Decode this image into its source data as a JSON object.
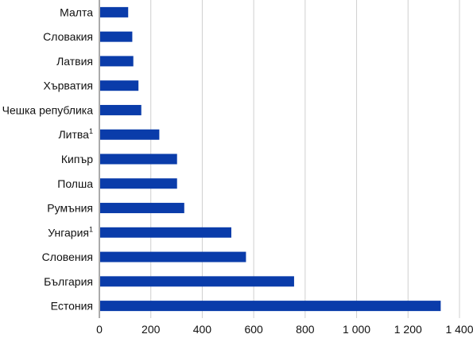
{
  "chart_data": {
    "type": "bar",
    "orientation": "horizontal",
    "categories": [
      "Малта",
      "Словакия",
      "Латвия",
      "Хърватия",
      "Чешка република",
      "Литва",
      "Кипър",
      "Полша",
      "Румъния",
      "Унгария",
      "Словения",
      "България",
      "Естония"
    ],
    "footnote_marks": [
      "",
      "",
      "",
      "",
      "",
      "1",
      "",
      "",
      "",
      "1",
      "",
      "",
      ""
    ],
    "values": [
      112,
      128,
      132,
      152,
      163,
      233,
      302,
      302,
      330,
      513,
      570,
      757,
      1327
    ],
    "xlim": [
      0,
      1400
    ],
    "xticks": [
      0,
      200,
      400,
      600,
      800,
      1000,
      1200,
      1400
    ],
    "xtick_labels": [
      "0",
      "200",
      "400",
      "600",
      "800",
      "1 000",
      "1 200",
      "1 400"
    ],
    "grid": "vertical",
    "bar_color": "#0a3caa",
    "grid_color": "#cfcfcf",
    "axis_color": "#555555",
    "title": "",
    "xlabel": "",
    "ylabel": ""
  }
}
